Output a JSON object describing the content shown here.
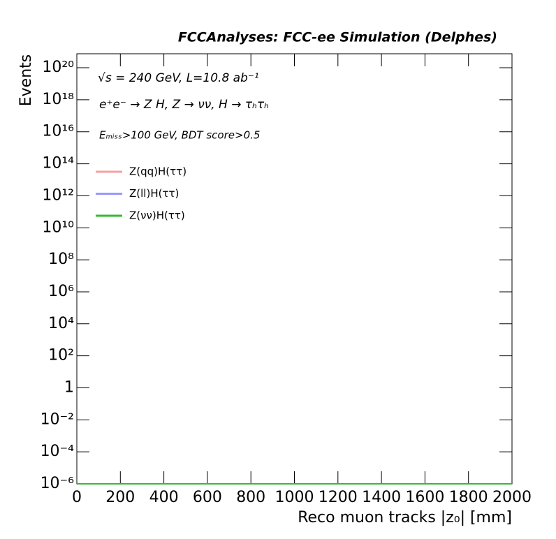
{
  "chart_data": {
    "type": "step",
    "title": "FCCAnalyses: FCC-ee Simulation (Delphes)",
    "annotations": [
      "√s = 240 GeV, L=10.8 ab⁻¹",
      "e⁺e⁻ → Z H, Z → νν, H → τₕτₕ",
      "Eₘᵢₛₛ>100 GeV, BDT score>0.5"
    ],
    "x_label": "Reco muon tracks |z₀| [mm]",
    "y_label": "Events",
    "log_y": true,
    "xlim": [
      0,
      2000
    ],
    "xticks": [
      0,
      200,
      400,
      600,
      800,
      1000,
      1200,
      1400,
      1600,
      1800,
      2000
    ],
    "ylim": [
      1e-06,
      7.5e+20
    ],
    "yticks": [
      {
        "value": 1e-06,
        "label": "10⁻⁶"
      },
      {
        "value": 0.0001,
        "label": "10⁻⁴"
      },
      {
        "value": 0.01,
        "label": "10⁻²"
      },
      1,
      {
        "value": 100,
        "label": "10²"
      },
      {
        "value": 10000.0,
        "label": "10⁴"
      },
      {
        "value": 1000000.0,
        "label": "10⁶"
      },
      {
        "value": 100000000.0,
        "label": "10⁸"
      },
      {
        "value": 10000000000.0,
        "label": "10¹⁰"
      },
      {
        "value": 1000000000000.0,
        "label": "10¹²"
      },
      {
        "value": 100000000000000.0,
        "label": "10¹⁴"
      },
      {
        "value": 1e+16,
        "label": "10¹⁶"
      },
      {
        "value": 1e+18,
        "label": "10¹⁸"
      },
      {
        "value": 1e+20,
        "label": "10²⁰"
      }
    ],
    "x": [
      0,
      2000
    ],
    "series": [
      {
        "name": "Z(qq)H(ττ)",
        "color": "#f4a0a0",
        "values": [
          0,
          0
        ]
      },
      {
        "name": "Z(ll)H(ττ)",
        "color": "#9999ff",
        "values": [
          0,
          0
        ]
      },
      {
        "name": "Z(νν)H(ττ)",
        "color": "#33bb33",
        "values": [
          0,
          0
        ]
      }
    ]
  }
}
